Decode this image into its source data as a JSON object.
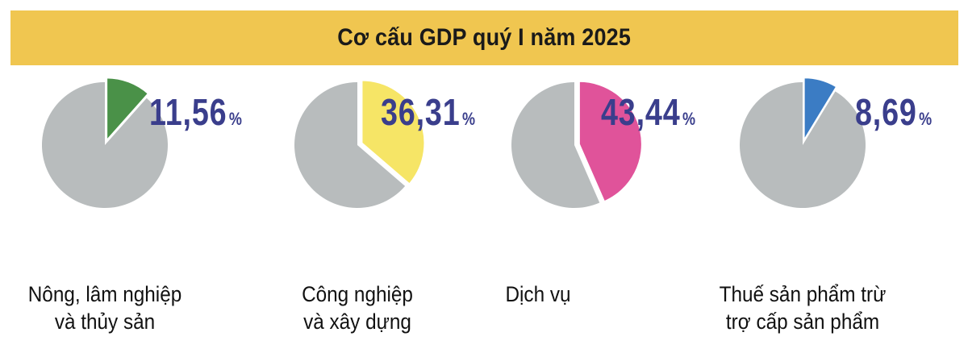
{
  "title": "Cơ cấu GDP quý I năm 2025",
  "chart_data": {
    "type": "pie",
    "title": "Cơ cấu GDP quý I năm 2025",
    "unit": "%",
    "sectors": [
      {
        "label_line1": "Nông, lâm nghiệp",
        "label_line2": "và thủy sản",
        "value": 11.56,
        "value_text": "11,56",
        "color": "#4a9148"
      },
      {
        "label_line1": "Công nghiệp",
        "label_line2": "và xây dựng",
        "value": 36.31,
        "value_text": "36,31",
        "color": "#f6e566"
      },
      {
        "label_line1": "Dịch vụ",
        "label_line2": "",
        "value": 43.44,
        "value_text": "43,44",
        "color": "#e0539a"
      },
      {
        "label_line1": "Thuế sản phẩm trừ",
        "label_line2": "trợ cấp sản phẩm",
        "value": 8.69,
        "value_text": "8,69",
        "color": "#3b7cc4"
      }
    ],
    "rest_color": "#b8bcbd",
    "percent_sign": "%"
  }
}
